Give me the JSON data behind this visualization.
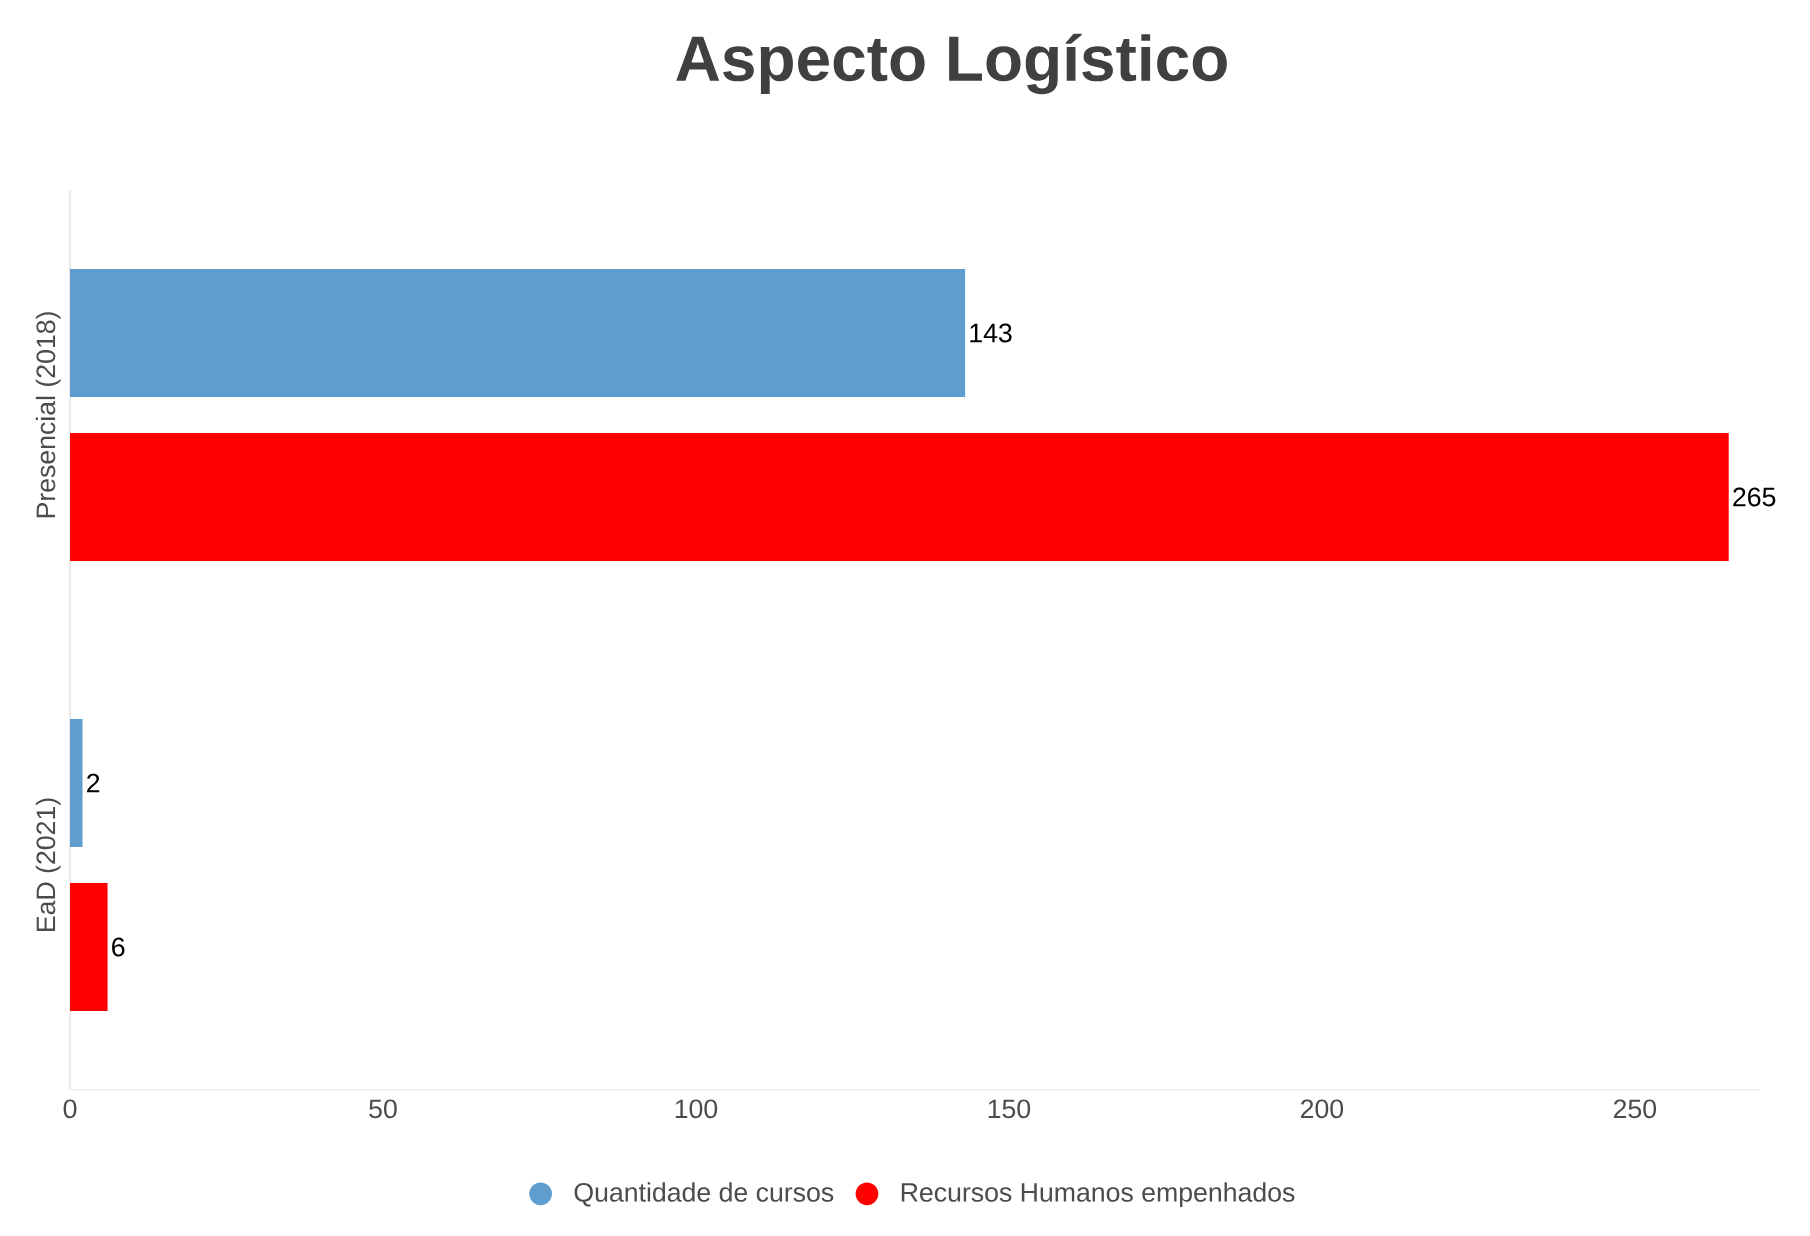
{
  "chart_data": {
    "type": "bar",
    "orientation": "horizontal",
    "title": "Aspecto Logístico",
    "categories": [
      "Presencial (2018)",
      "EaD (2021)"
    ],
    "series": [
      {
        "name": "Quantidade de cursos",
        "color": "#5f9dce",
        "values": [
          143,
          2
        ]
      },
      {
        "name": "Recursos Humanos empenhados",
        "color": "#ff0000",
        "values": [
          265,
          6
        ]
      }
    ],
    "xlim": [
      0,
      270
    ],
    "xticks": [
      0,
      50,
      100,
      150,
      200,
      250
    ],
    "data_labels": true,
    "legend": "bottom"
  }
}
